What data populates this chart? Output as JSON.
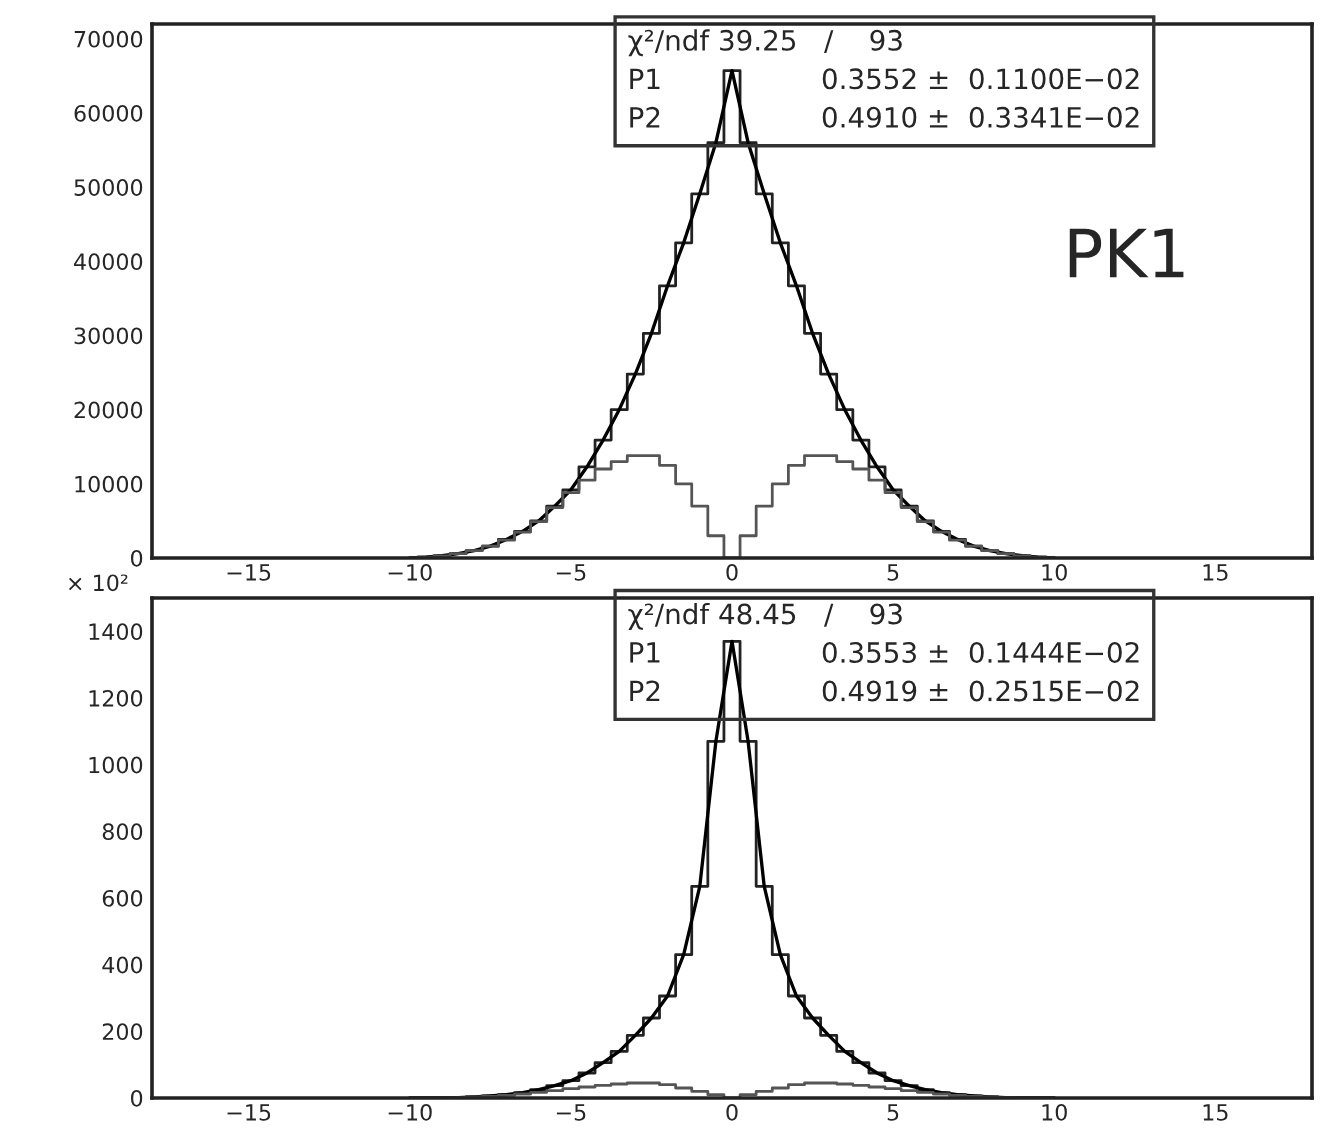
{
  "chart_data": [
    {
      "type": "step",
      "xlim": [
        -18,
        18
      ],
      "xticks": [
        {
          "value": -15,
          "label": "−15"
        },
        {
          "value": -10,
          "label": "−10"
        },
        {
          "value": -5,
          "label": "−5"
        },
        0,
        5,
        10,
        15
      ],
      "ylim": [
        0,
        72000
      ],
      "yticks": [
        0,
        10000,
        20000,
        30000,
        40000,
        50000,
        60000,
        70000
      ],
      "grid": false,
      "x": [
        -10,
        -9.5,
        -9,
        -8.5,
        -8,
        -7.5,
        -7,
        -6.5,
        -6,
        -5.5,
        -5,
        -4.5,
        -4,
        -3.5,
        -3,
        -2.5,
        -2,
        -1.5,
        -1,
        -0.5,
        0,
        0.5,
        1,
        1.5,
        2,
        2.5,
        3,
        3.5,
        4,
        4.5,
        5,
        5.5,
        6,
        6.5,
        7,
        7.5,
        8,
        8.5,
        9,
        9.5,
        10
      ],
      "series": [
        {
          "color": "#222222",
          "values": [
            0,
            100,
            300,
            600,
            1000,
            1600,
            2500,
            3600,
            5000,
            7000,
            9200,
            12300,
            15900,
            20000,
            24800,
            30300,
            36700,
            42500,
            49100,
            56000,
            65700,
            56000,
            49100,
            42500,
            36700,
            30300,
            24800,
            20000,
            15900,
            12300,
            9200,
            7000,
            5000,
            3600,
            2500,
            1600,
            1000,
            600,
            300,
            100,
            0
          ]
        },
        {
          "type": "line",
          "color": "#000000",
          "values": [
            0,
            100,
            300,
            600,
            1000,
            1600,
            2500,
            3600,
            5000,
            7000,
            9200,
            12300,
            15900,
            20000,
            24800,
            30300,
            36700,
            42500,
            49100,
            56000,
            65700,
            56000,
            49100,
            42500,
            36700,
            30300,
            24800,
            20000,
            15900,
            12300,
            9200,
            7000,
            5000,
            3600,
            2500,
            1600,
            1000,
            600,
            300,
            100,
            0
          ]
        },
        {
          "color": "#555555",
          "values": [
            0,
            100,
            300,
            600,
            1000,
            1600,
            2400,
            3500,
            4900,
            6800,
            8800,
            10500,
            12000,
            13000,
            13800,
            13800,
            12500,
            10000,
            7000,
            3000,
            0,
            3000,
            7000,
            10000,
            12500,
            13800,
            13800,
            13000,
            12000,
            10500,
            8800,
            6800,
            4900,
            3500,
            2400,
            1600,
            1000,
            600,
            300,
            100,
            0
          ]
        }
      ],
      "annotations": [
        "χ²/ndf 39.25   /    93",
        "P1                  0.3552 ±  0.1100E−02",
        "P2                  0.4910 ±  0.3341E−02",
        "PK1"
      ]
    },
    {
      "type": "step",
      "xlim": [
        -18,
        18
      ],
      "xticks": [
        {
          "value": -15,
          "label": "−15"
        },
        {
          "value": -10,
          "label": "−10"
        },
        {
          "value": -5,
          "label": "−5"
        },
        0,
        5,
        10,
        15
      ],
      "ylim": [
        0,
        1500
      ],
      "yticks": [
        0,
        200,
        400,
        600,
        800,
        1000,
        1200,
        1400
      ],
      "grid": false,
      "ylabel": "× 10²",
      "x": [
        -10,
        -9.5,
        -9,
        -8.5,
        -8,
        -7.5,
        -7,
        -6.5,
        -6,
        -5.5,
        -5,
        -4.5,
        -4,
        -3.5,
        -3,
        -2.5,
        -2,
        -1.5,
        -1,
        -0.5,
        0,
        0.5,
        1,
        1.5,
        2,
        2.5,
        3,
        3.5,
        4,
        4.5,
        5,
        5.5,
        6,
        6.5,
        7,
        7.5,
        8,
        8.5,
        9,
        9.5,
        10
      ],
      "series": [
        {
          "color": "#222222",
          "values": [
            0,
            0,
            0,
            1,
            3,
            6,
            10,
            16,
            25,
            37,
            52,
            75,
            106,
            140,
            188,
            240,
            306,
            430,
            635,
            1070,
            1370,
            1070,
            635,
            430,
            306,
            240,
            188,
            140,
            106,
            75,
            52,
            37,
            25,
            16,
            10,
            6,
            3,
            1,
            0,
            0,
            0
          ]
        },
        {
          "type": "line",
          "color": "#000000",
          "values": [
            0,
            0,
            0,
            1,
            3,
            6,
            10,
            16,
            25,
            37,
            52,
            75,
            106,
            140,
            188,
            240,
            306,
            430,
            635,
            1070,
            1370,
            1070,
            635,
            430,
            306,
            240,
            188,
            140,
            106,
            75,
            52,
            37,
            25,
            16,
            10,
            6,
            3,
            1,
            0,
            0,
            0
          ]
        },
        {
          "color": "#555555",
          "values": [
            0,
            0,
            0,
            1,
            3,
            5,
            8,
            12,
            17,
            22,
            28,
            33,
            38,
            42,
            45,
            45,
            40,
            30,
            20,
            10,
            0,
            10,
            20,
            30,
            40,
            45,
            45,
            42,
            38,
            33,
            28,
            22,
            17,
            12,
            8,
            5,
            3,
            1,
            0,
            0,
            0
          ]
        }
      ],
      "annotations": [
        "χ²/ndf 48.45   /    93",
        "P1                  0.3553 ±  0.1444E−02",
        "P2                  0.4919 ±  0.2515E−02"
      ]
    }
  ]
}
